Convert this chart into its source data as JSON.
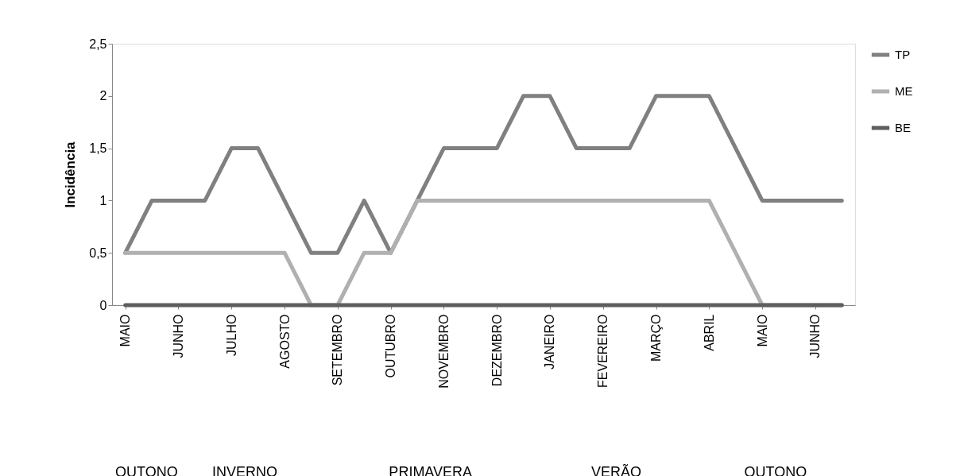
{
  "chart_data": {
    "type": "line",
    "ylabel": "Incidência",
    "categories": [
      "MAIO",
      null,
      "JUNHO",
      null,
      "JULHO",
      null,
      "AGOSTO",
      null,
      "SETEMBRO",
      null,
      "OUTUBRO",
      null,
      "NOVEMBRO",
      null,
      "DEZEMBRO",
      null,
      "JANEIRO",
      null,
      "FEVEREIRO",
      null,
      "MARÇO",
      null,
      "ABRIL",
      null,
      "MAIO",
      null,
      "JUNHO",
      null
    ],
    "series": [
      {
        "name": "TP",
        "color": "#808080",
        "values": [
          0.5,
          1,
          1,
          1,
          1.5,
          1.5,
          1,
          0.5,
          0.5,
          1,
          0.5,
          1,
          1.5,
          1.5,
          1.5,
          2,
          2,
          1.5,
          1.5,
          1.5,
          2,
          2,
          2,
          1.5,
          1,
          1,
          1,
          1
        ]
      },
      {
        "name": "ME",
        "color": "#b0b0b0",
        "values": [
          0.5,
          0.5,
          0.5,
          0.5,
          0.5,
          0.5,
          0.5,
          0,
          0,
          0.5,
          0.5,
          1,
          1,
          1,
          1,
          1,
          1,
          1,
          1,
          1,
          1,
          1,
          1,
          0.5,
          0,
          0,
          0,
          0
        ]
      },
      {
        "name": "BE",
        "color": "#5e5e5e",
        "values": [
          0,
          0,
          0,
          0,
          0,
          0,
          0,
          0,
          0,
          0,
          0,
          0,
          0,
          0,
          0,
          0,
          0,
          0,
          0,
          0,
          0,
          0,
          0,
          0,
          0,
          0,
          0,
          0
        ]
      }
    ],
    "ylim": [
      0,
      2.5
    ],
    "yticks": [
      0,
      {
        "value": 0.5,
        "label": "0,5"
      },
      1,
      {
        "value": 1.5,
        "label": "1,5"
      },
      2,
      {
        "value": 2.5,
        "label": "2,5"
      }
    ],
    "grid": false,
    "legend": "right",
    "marker": "none",
    "line_style": "solid",
    "annotations": [
      "OUTONO",
      "INVERNO",
      "PRIMAVERA",
      "VERÃO",
      "OUTONO"
    ]
  }
}
